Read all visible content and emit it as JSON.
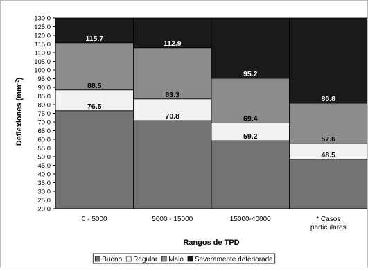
{
  "chart_data": {
    "type": "bar",
    "stacked": true,
    "title": "",
    "xlabel": "Rangos de TPD",
    "ylabel": "Deflexiones (mm",
    "ylabel_sup": "-2",
    "ylabel_close": ")",
    "ylim": [
      20.0,
      130.0
    ],
    "ytick_step": 5.0,
    "grid": false,
    "legend_position": "bottom",
    "categories": [
      [
        "0 - 5000"
      ],
      [
        "5000 - 15000"
      ],
      [
        "15000-40000"
      ],
      [
        "* Casos",
        "particulares"
      ]
    ],
    "series": [
      {
        "name": "Bueno",
        "color": "#737373",
        "label_color": "#000000",
        "tops": [
          76.5,
          70.8,
          59.2,
          48.5
        ]
      },
      {
        "name": "Regular",
        "color": "#f2f2f2",
        "label_color": "#000000",
        "tops": [
          88.5,
          83.3,
          69.4,
          57.6
        ]
      },
      {
        "name": "Malo",
        "color": "#8c8c8c",
        "label_color": "#000000",
        "tops": [
          115.7,
          112.9,
          95.2,
          80.8
        ]
      },
      {
        "name": "Severamente deteriorada",
        "color": "#1a1a1a",
        "label_color": "#ffffff",
        "tops": [
          130.0,
          130.0,
          130.0,
          130.0
        ]
      }
    ],
    "data_labels": [
      [
        76.5,
        88.5,
        115.7
      ],
      [
        70.8,
        83.3,
        112.9
      ],
      [
        59.2,
        69.4,
        95.2
      ],
      [
        48.5,
        57.6,
        80.8
      ]
    ]
  }
}
